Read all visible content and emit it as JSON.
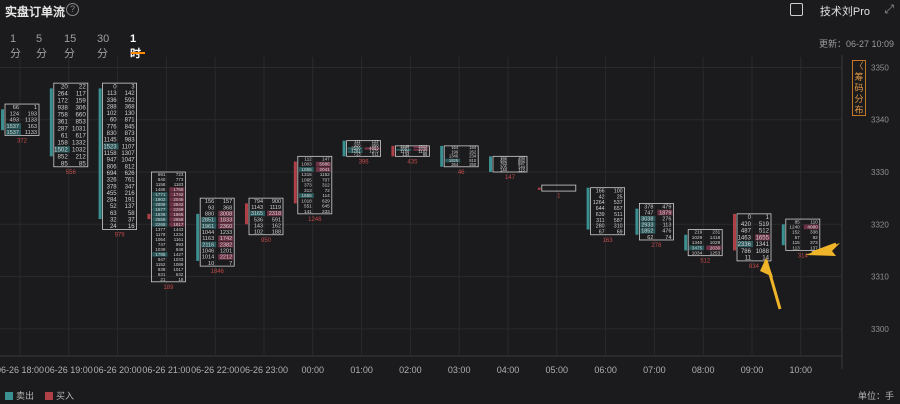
{
  "header": {
    "title": "实盘订单流",
    "help": "?",
    "brand": "技术刘Pro",
    "expand": "⤢"
  },
  "tabs": [
    {
      "label": "1分",
      "active": false
    },
    {
      "label": "5分",
      "active": false
    },
    {
      "label": "15分",
      "active": false
    },
    {
      "label": "30分",
      "active": false
    },
    {
      "label": "1时",
      "active": true
    }
  ],
  "update_time": "更新：06-27 10:09",
  "side_tab": "〈 筹 码 分 布",
  "legend": {
    "sell": "卖出",
    "buy": "买入",
    "sell_color": "#3a8f90",
    "buy_color": "#b04048"
  },
  "unit": "单位：手",
  "chart_data": {
    "type": "footprint",
    "x_labels": [
      "06-26 18:00",
      "06-26 19:00",
      "06-26 20:00",
      "06-26 21:00",
      "06-26 22:00",
      "06-26 23:00",
      "00:00",
      "01:00",
      "02:00",
      "03:00",
      "04:00",
      "05:00",
      "06:00",
      "07:00",
      "08:00",
      "09:00",
      "10:00"
    ],
    "ylim": [
      3295,
      3352
    ],
    "yticks": [
      3300,
      3310,
      3320,
      3330,
      3340,
      3350
    ],
    "candles": [
      {
        "x": "06-26 18:00",
        "high": 3343,
        "low": 3337,
        "open": 3342,
        "close": 3338,
        "delta": "372",
        "sell": [
          "66",
          "124",
          "493",
          "1537",
          "1537"
        ],
        "buy": [
          "1",
          "193",
          "1133",
          "163",
          "1133"
        ]
      },
      {
        "x": "06-26 19:00",
        "high": 3347,
        "low": 3331,
        "open": 3346,
        "close": 3333,
        "delta": "556",
        "sell": [
          "20",
          "264",
          "172",
          "938",
          "758",
          "361",
          "287",
          "61",
          "158",
          "1502",
          "852",
          "85"
        ],
        "buy": [
          "22",
          "117",
          "159",
          "306",
          "660",
          "853",
          "1031",
          "617",
          "1332",
          "1032",
          "212",
          "85"
        ]
      },
      {
        "x": "06-26 20:00",
        "high": 3347,
        "low": 3319,
        "open": 3346,
        "close": 3321,
        "delta": "979",
        "sell": [
          "0",
          "113",
          "336",
          "288",
          "102",
          "60",
          "776",
          "830",
          "1145",
          "1523",
          "1158",
          "947",
          "806",
          "694",
          "326",
          "378",
          "455",
          "284",
          "52",
          "63",
          "32",
          "24"
        ],
        "buy": [
          "3",
          "142",
          "592",
          "368",
          "130",
          "871",
          "845",
          "873",
          "983",
          "1107",
          "1307",
          "1047",
          "812",
          "626",
          "761",
          "347",
          "216",
          "191",
          "137",
          "58",
          "37",
          "16"
        ]
      },
      {
        "x": "06-26 21:00",
        "high": 3330,
        "low": 3309,
        "open": 3321,
        "close": 3322,
        "delta": "189",
        "sell": [
          "691",
          "840",
          "1158",
          "1485",
          "1771",
          "1902",
          "2889",
          "1577",
          "1838",
          "2558",
          "2268",
          "1377",
          "1178",
          "1054",
          "747",
          "1039",
          "1785",
          "947",
          "1152",
          "838",
          "631",
          "21"
        ],
        "buy": [
          "723",
          "773",
          "1183",
          "1755",
          "1742",
          "2046",
          "2842",
          "2289",
          "1865",
          "2658",
          "1817",
          "1443",
          "1234",
          "1161",
          "993",
          "848",
          "1427",
          "1033",
          "1089",
          "1017",
          "632",
          "18"
        ]
      },
      {
        "x": "06-26 22:00",
        "high": 3325,
        "low": 3312,
        "open": 3322,
        "close": 3313,
        "delta": "1846",
        "sell": [
          "156",
          "93",
          "880",
          "2851",
          "1961",
          "1044",
          "1163",
          "2116",
          "1046",
          "1014",
          "10"
        ],
        "buy": [
          "157",
          "368",
          "3008",
          "1833",
          "2360",
          "1233",
          "1742",
          "2382",
          "1201",
          "2212",
          "7"
        ]
      },
      {
        "x": "06-26 23:00",
        "high": 3325,
        "low": 3318,
        "open": 3320,
        "close": 3324,
        "delta": "950",
        "sell": [
          "794",
          "1143",
          "3165",
          "536",
          "143",
          "102"
        ],
        "buy": [
          "900",
          "1119",
          "2318",
          "591",
          "162",
          "188"
        ]
      },
      {
        "x": "00:00",
        "high": 3333,
        "low": 3322,
        "open": 3324,
        "close": 3332,
        "delta": "1246",
        "sell": [
          "112",
          "1003",
          "1855",
          "1315",
          "1065",
          "373",
          "313",
          "1655",
          "1018",
          "551",
          "141"
        ],
        "buy": [
          "147",
          "5686",
          "2041",
          "1152",
          "707",
          "312",
          "72",
          "114",
          "629",
          "645",
          "233"
        ]
      },
      {
        "x": "01:00",
        "high": 3336,
        "low": 3333,
        "open": 3336,
        "close": 3333,
        "delta": "396",
        "sell": [
          "111",
          "326",
          "2536",
          "1781",
          "713"
        ],
        "buy": [
          "122",
          "668",
          "4883",
          "1375",
          "511"
        ]
      },
      {
        "x": "02:00",
        "high": 3335,
        "low": 3333,
        "open": 3333,
        "close": 3335,
        "delta": "435",
        "sell": [
          "1449",
          "1661",
          "1155",
          "134"
        ],
        "buy": [
          "1522",
          "1838",
          "1102",
          "99"
        ]
      },
      {
        "x": "03:00",
        "high": 3335,
        "low": 3331,
        "open": 3335,
        "close": 3331,
        "delta": "46",
        "sell": [
          "164",
          "199",
          "1346",
          "1825",
          "264"
        ],
        "buy": [
          "184",
          "262",
          "234",
          "810",
          "250"
        ]
      },
      {
        "x": "04:00",
        "high": 3333,
        "low": 3330,
        "open": 3333,
        "close": 3330,
        "delta": "147",
        "sell": [
          "152",
          "482",
          "763",
          "305",
          "144"
        ],
        "buy": [
          "160",
          "682",
          "887",
          "344",
          "115"
        ]
      },
      {
        "x": "05:00",
        "high": 3327.5,
        "low": 3326.5,
        "open": 3327,
        "close": 3327,
        "delta": "1",
        "sell": [],
        "buy": []
      },
      {
        "x": "06:00",
        "high": 3327,
        "low": 3318,
        "open": 3327,
        "close": 3319,
        "delta": "163",
        "sell": [
          "166",
          "42",
          "1264",
          "644",
          "639",
          "311",
          "280",
          "67"
        ],
        "buy": [
          "100",
          "25",
          "537",
          "657",
          "511",
          "587",
          "310",
          "69"
        ]
      },
      {
        "x": "07:00",
        "high": 3324,
        "low": 3317,
        "open": 3323,
        "close": 3318,
        "delta": "278",
        "sell": [
          "378",
          "747",
          "3038",
          "2933",
          "1852",
          "62"
        ],
        "buy": [
          "479",
          "1879",
          "276",
          "113",
          "476",
          "74"
        ]
      },
      {
        "x": "08:00",
        "high": 3319,
        "low": 3314,
        "open": 3318,
        "close": 3315,
        "delta": "512",
        "sell": [
          "219",
          "1029",
          "1340",
          "3475",
          "1034"
        ],
        "buy": [
          "231",
          "1418",
          "1029",
          "2030",
          "1253"
        ]
      },
      {
        "x": "09:00",
        "high": 3322,
        "low": 3313,
        "open": 3315,
        "close": 3322,
        "delta": "834",
        "sell": [
          "0",
          "420",
          "487",
          "1463",
          "2336",
          "786",
          "11"
        ],
        "buy": [
          "1",
          "519",
          "512",
          "1655",
          "1341",
          "1088",
          "14"
        ]
      },
      {
        "x": "10:00",
        "high": 3321,
        "low": 3315,
        "open": 3320,
        "close": 3316,
        "delta": "314",
        "sell": [
          "85",
          "1240",
          "152",
          "57",
          "115",
          "113"
        ],
        "buy": [
          "110",
          "4080",
          "338",
          "92",
          "373",
          "137"
        ]
      }
    ]
  }
}
